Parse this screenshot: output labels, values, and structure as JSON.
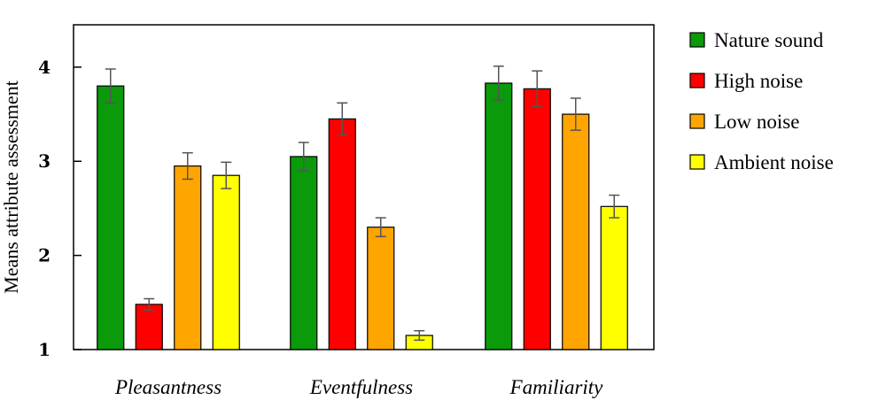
{
  "chart_data": {
    "type": "bar",
    "title": "",
    "xlabel": "",
    "ylabel": "Means attribute assessment",
    "ylim": [
      1,
      4.45
    ],
    "yticks": [
      1,
      2,
      3,
      4
    ],
    "categories": [
      "Pleasantness",
      "Eventfulness",
      "Familiarity"
    ],
    "series": [
      {
        "name": "Nature sound",
        "color": "#0a9a0a",
        "values": [
          3.8,
          3.05,
          3.83
        ],
        "errors": [
          0.18,
          0.15,
          0.18
        ]
      },
      {
        "name": "High noise",
        "color": "#ff0000",
        "values": [
          1.48,
          3.45,
          3.77
        ],
        "errors": [
          0.06,
          0.17,
          0.19
        ]
      },
      {
        "name": "Low noise",
        "color": "#ffa500",
        "values": [
          2.95,
          2.3,
          3.5
        ],
        "errors": [
          0.14,
          0.1,
          0.17
        ]
      },
      {
        "name": "Ambient noise",
        "color": "#ffff00",
        "values": [
          2.85,
          1.15,
          2.52
        ],
        "errors": [
          0.14,
          0.05,
          0.12
        ]
      }
    ],
    "legend_position": "right"
  }
}
